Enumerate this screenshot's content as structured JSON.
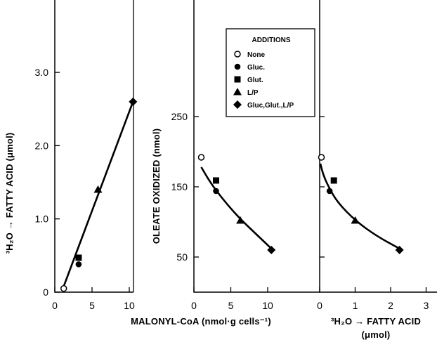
{
  "chart_data": [
    {
      "type": "scatter",
      "xlabel": "MALONYL-CoA (nmol·g cells⁻¹)",
      "ylabel": "³H₂O → FATTY ACID (μmol)",
      "xlim": [
        0,
        12
      ],
      "ylim": [
        0,
        4.0
      ],
      "xticks": [
        "0",
        "5",
        "10"
      ],
      "yticks": [
        "0",
        "1.0",
        "2.0",
        "3.0"
      ],
      "grid": false,
      "points": [
        {
          "series": "None",
          "x": 1.2,
          "y": 0.05
        },
        {
          "series": "Gluc.",
          "x": 3.2,
          "y": 0.38
        },
        {
          "series": "Glut.",
          "x": 3.2,
          "y": 0.47
        },
        {
          "series": "L/P",
          "x": 5.8,
          "y": 1.4
        },
        {
          "series": "Gluc,Glut.,L/P",
          "x": 10.5,
          "y": 2.6
        }
      ],
      "fit_line": [
        [
          1.2,
          0.08
        ],
        [
          10.5,
          2.6
        ]
      ]
    },
    {
      "type": "scatter",
      "xlabel": "MALONYL-CoA (nmol·g cells⁻¹)",
      "ylabel": "OLEATE OXIDIZED (nmol)",
      "xlim": [
        0,
        12
      ],
      "ylim": [
        0,
        300
      ],
      "xticks": [
        "0",
        "5",
        "10"
      ],
      "yticks": [
        "50",
        "150",
        "250"
      ],
      "grid": false,
      "points": [
        {
          "series": "None",
          "x": 1.0,
          "y": 192
        },
        {
          "series": "Gluc.",
          "x": 3.0,
          "y": 144
        },
        {
          "series": "Glut.",
          "x": 3.0,
          "y": 159
        },
        {
          "series": "L/P",
          "x": 6.3,
          "y": 102
        },
        {
          "series": "Gluc,Glut.,L/P",
          "x": 10.5,
          "y": 60
        }
      ],
      "fit_curve": [
        [
          1.0,
          178
        ],
        [
          2.0,
          160
        ],
        [
          3.0,
          145
        ],
        [
          4.5,
          125
        ],
        [
          6.3,
          104
        ],
        [
          8.5,
          82
        ],
        [
          10.5,
          62
        ]
      ]
    },
    {
      "type": "scatter",
      "xlabel": "³H₂O → FATTY ACID",
      "xlabel2": "(μmol)",
      "xlim": [
        0,
        3.2
      ],
      "xticks": [
        "0",
        "1",
        "2",
        "3"
      ],
      "grid": false,
      "points": [
        {
          "series": "None",
          "x": 0.05,
          "y": 192
        },
        {
          "series": "Gluc.",
          "x": 0.28,
          "y": 144
        },
        {
          "series": "Glut.",
          "x": 0.4,
          "y": 159
        },
        {
          "series": "L/P",
          "x": 1.0,
          "y": 102
        },
        {
          "series": "Gluc,Glut.,L/P",
          "x": 2.25,
          "y": 60
        }
      ],
      "fit_curve": [
        [
          0.02,
          183
        ],
        [
          0.1,
          167
        ],
        [
          0.25,
          150
        ],
        [
          0.5,
          128
        ],
        [
          1.0,
          102
        ],
        [
          1.6,
          80
        ],
        [
          2.25,
          62
        ]
      ]
    }
  ],
  "legend": {
    "title": "ADDITIONS",
    "placement": "top-center",
    "entries": [
      {
        "label": "None",
        "marker": "open-circle"
      },
      {
        "label": "Gluc.",
        "marker": "filled-circle"
      },
      {
        "label": "Glut.",
        "marker": "filled-square"
      },
      {
        "label": "L/P",
        "marker": "filled-triangle"
      },
      {
        "label": "Gluc,Glut.,L/P",
        "marker": "filled-diamond"
      }
    ]
  },
  "colors": {
    "ink": "#000000",
    "background": "#ffffff"
  }
}
